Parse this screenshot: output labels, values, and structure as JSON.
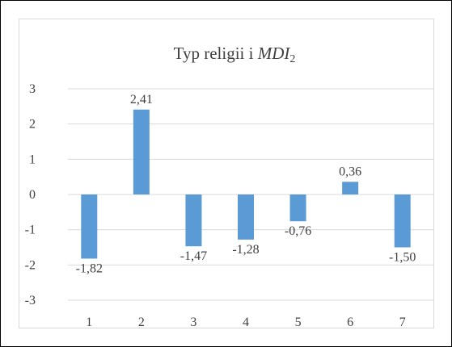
{
  "chart_data": {
    "type": "bar",
    "title_main": "Typ religii i ",
    "title_var": "MDI",
    "title_sub": "2",
    "categories": [
      "1",
      "2",
      "3",
      "4",
      "5",
      "6",
      "7"
    ],
    "values": [
      -1.82,
      2.41,
      -1.47,
      -1.28,
      -0.76,
      0.36,
      -1.5
    ],
    "data_labels": [
      "-1,82",
      "2,41",
      "-1,47",
      "-1,28",
      "-0,76",
      "0,36",
      "-1,50"
    ],
    "y_ticks": [
      "3",
      "2",
      "1",
      "0",
      "-1",
      "-2",
      "-3"
    ],
    "ylim": [
      -3,
      3
    ],
    "xlabel": "",
    "ylabel": "",
    "grid": true,
    "colors": {
      "bar": "#5b9bd5",
      "grid": "#d9d9d9",
      "text": "#404040"
    }
  }
}
